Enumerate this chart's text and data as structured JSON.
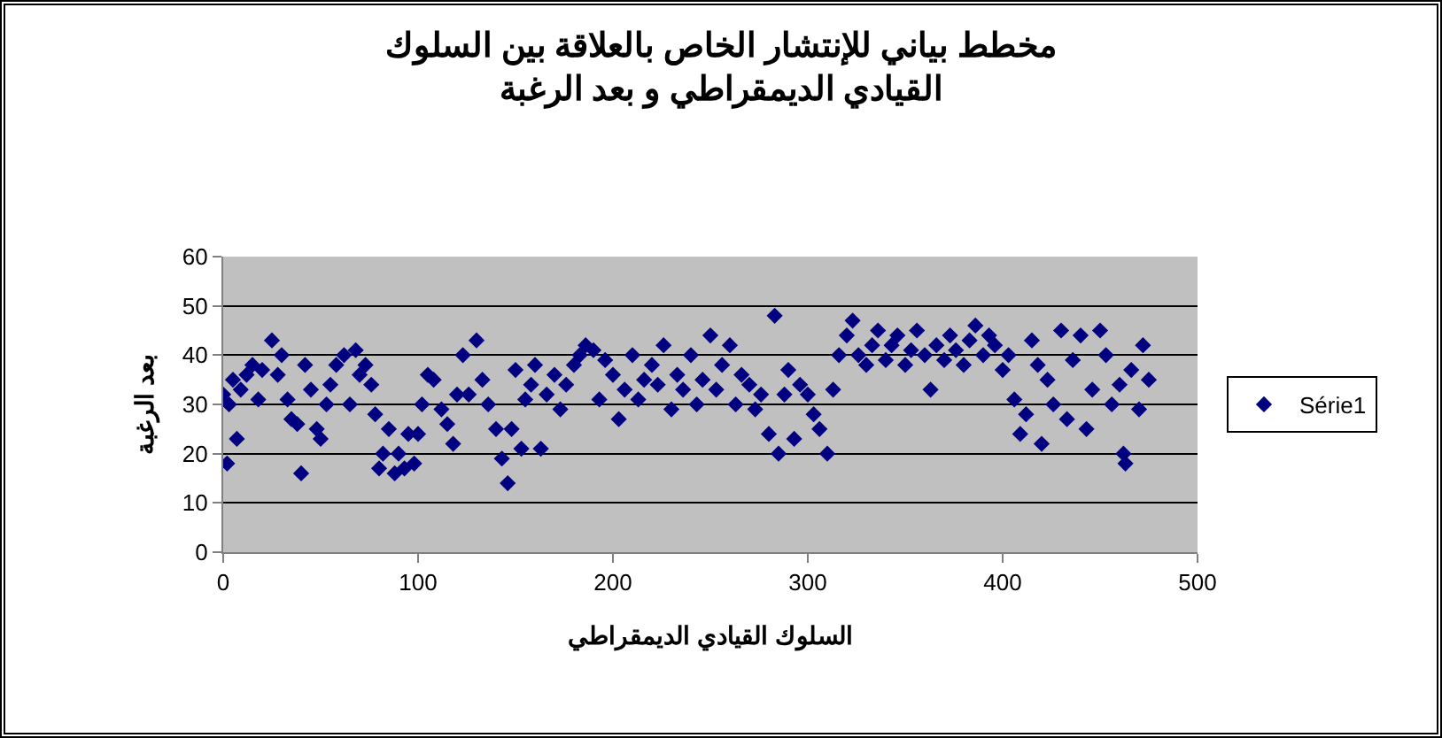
{
  "chart_data": {
    "type": "scatter",
    "title": "مخطط بياني للإنتشار الخاص بالعلاقة بين السلوك\nالقيادي الديمقراطي و بعد الرغبة",
    "xlabel": "السلوك القيادي الديمقراطي",
    "ylabel": "بعد الرغبة",
    "xlim": [
      0,
      500
    ],
    "xticks": [
      0,
      100,
      200,
      300,
      400,
      500
    ],
    "ylim": [
      0,
      60
    ],
    "yticks": [
      0,
      10,
      20,
      30,
      40,
      50,
      60
    ],
    "grid": "y",
    "legend": "right",
    "marker": "diamond",
    "series": [
      {
        "name": "Série1",
        "color": "#000080",
        "x": [
          0,
          2,
          3,
          5,
          7,
          9,
          12,
          15,
          18,
          20,
          25,
          28,
          30,
          33,
          35,
          38,
          40,
          42,
          45,
          48,
          50,
          53,
          55,
          58,
          62,
          65,
          68,
          70,
          73,
          76,
          78,
          80,
          82,
          85,
          88,
          90,
          93,
          95,
          98,
          100,
          102,
          105,
          108,
          112,
          115,
          118,
          120,
          123,
          126,
          130,
          133,
          136,
          140,
          143,
          146,
          148,
          150,
          153,
          155,
          158,
          160,
          163,
          166,
          170,
          173,
          176,
          180,
          183,
          186,
          190,
          193,
          196,
          200,
          203,
          206,
          210,
          213,
          216,
          220,
          223,
          226,
          230,
          233,
          236,
          240,
          243,
          246,
          250,
          253,
          256,
          260,
          263,
          266,
          270,
          273,
          276,
          280,
          283,
          285,
          288,
          290,
          293,
          296,
          300,
          303,
          306,
          310,
          313,
          316,
          320,
          323,
          326,
          330,
          333,
          336,
          340,
          343,
          346,
          350,
          353,
          356,
          360,
          363,
          366,
          370,
          373,
          376,
          380,
          383,
          386,
          390,
          393,
          396,
          400,
          403,
          406,
          409,
          412,
          415,
          418,
          420,
          423,
          426,
          430,
          433,
          436,
          440,
          443,
          446,
          450,
          453,
          456,
          460,
          462,
          463,
          466,
          470,
          472,
          475
        ],
        "values": [
          32,
          18,
          30,
          35,
          23,
          33,
          36,
          38,
          31,
          37,
          43,
          36,
          40,
          31,
          27,
          26,
          16,
          38,
          33,
          25,
          23,
          30,
          34,
          38,
          40,
          30,
          41,
          36,
          38,
          34,
          28,
          17,
          20,
          25,
          16,
          20,
          17,
          24,
          18,
          24,
          30,
          36,
          35,
          29,
          26,
          22,
          32,
          40,
          32,
          43,
          35,
          30,
          25,
          19,
          14,
          25,
          37,
          21,
          31,
          34,
          38,
          21,
          32,
          36,
          29,
          34,
          38,
          40,
          42,
          41,
          31,
          39,
          36,
          27,
          33,
          40,
          31,
          35,
          38,
          34,
          42,
          29,
          36,
          33,
          40,
          30,
          35,
          44,
          33,
          38,
          42,
          30,
          36,
          34,
          29,
          32,
          24,
          48,
          20,
          32,
          37,
          23,
          34,
          32,
          28,
          25,
          20,
          33,
          40,
          44,
          47,
          40,
          38,
          42,
          45,
          39,
          42,
          44,
          38,
          41,
          45,
          40,
          33,
          42,
          39,
          44,
          41,
          38,
          43,
          46,
          40,
          44,
          42,
          37,
          40,
          31,
          24,
          28,
          43,
          38,
          22,
          35,
          30,
          45,
          27,
          39,
          44,
          25,
          33,
          45,
          40,
          30,
          34,
          20,
          18,
          37,
          29,
          42,
          35
        ]
      }
    ]
  }
}
